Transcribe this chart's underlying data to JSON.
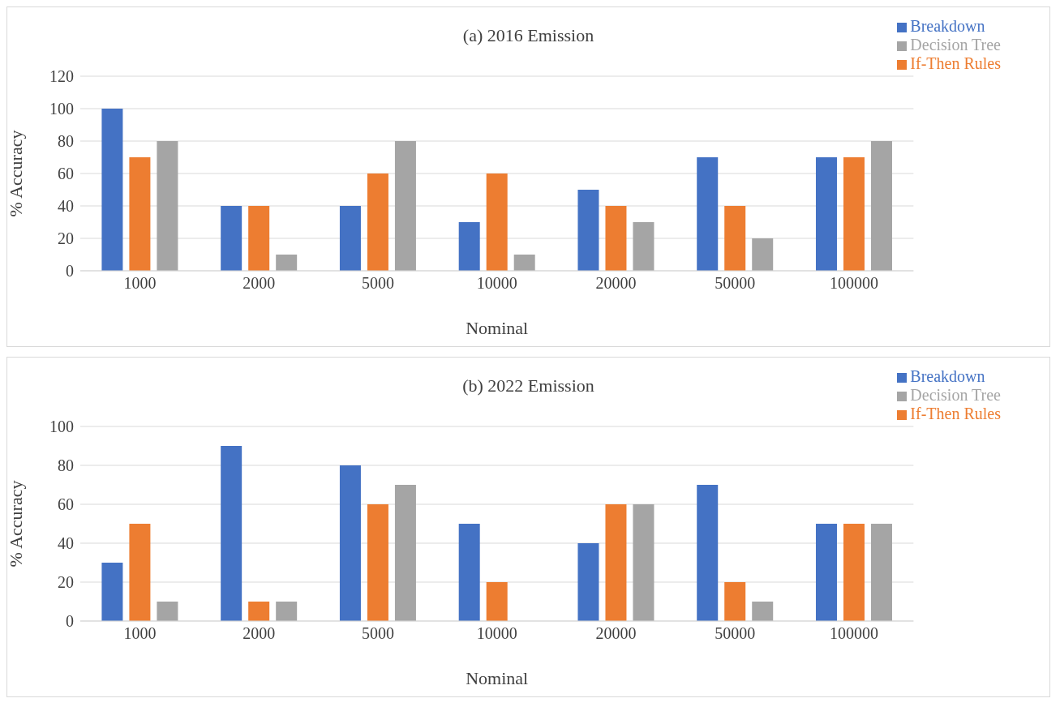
{
  "chart_data": [
    {
      "type": "bar",
      "title": "(a) 2016 Emission",
      "xlabel": "Nominal",
      "ylabel": "% Accuracy",
      "categories": [
        "1000",
        "2000",
        "5000",
        "10000",
        "20000",
        "50000",
        "100000"
      ],
      "series": [
        {
          "name": "Breakdown",
          "color": "#4472c4",
          "values": [
            100,
            40,
            40,
            30,
            50,
            70,
            70
          ]
        },
        {
          "name": "If-Then Rules",
          "color": "#ed7d31",
          "values": [
            70,
            40,
            60,
            60,
            40,
            40,
            70
          ]
        },
        {
          "name": "Decision Tree",
          "color": "#a5a5a5",
          "values": [
            80,
            10,
            80,
            10,
            30,
            20,
            80
          ]
        }
      ],
      "ylim": [
        0,
        120
      ],
      "yticks": [
        0,
        20,
        40,
        60,
        80,
        100,
        120
      ],
      "grid": "y",
      "legend": "top right"
    },
    {
      "type": "bar",
      "title": "(b) 2022 Emission",
      "xlabel": "Nominal",
      "ylabel": "% Accuracy",
      "categories": [
        "1000",
        "2000",
        "5000",
        "10000",
        "20000",
        "50000",
        "100000"
      ],
      "series": [
        {
          "name": "Breakdown",
          "color": "#4472c4",
          "values": [
            30,
            90,
            80,
            50,
            40,
            70,
            50
          ]
        },
        {
          "name": "If-Then Rules",
          "color": "#ed7d31",
          "values": [
            50,
            10,
            60,
            20,
            60,
            20,
            50
          ]
        },
        {
          "name": "Decision Tree",
          "color": "#a5a5a5",
          "values": [
            10,
            10,
            70,
            0,
            60,
            10,
            50
          ]
        }
      ],
      "ylim": [
        0,
        100
      ],
      "yticks": [
        0,
        20,
        40,
        60,
        80,
        100
      ],
      "grid": "y",
      "legend": "top right"
    }
  ]
}
